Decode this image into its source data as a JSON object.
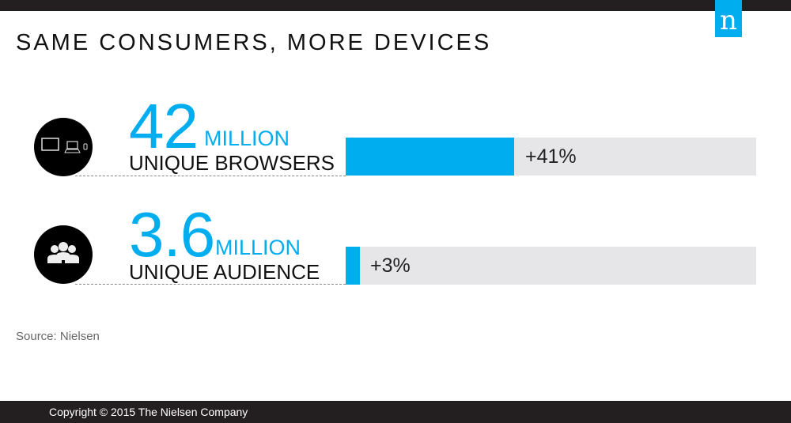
{
  "title": "SAME CONSUMERS, MORE DEVICES",
  "logo": "n",
  "chart_data": {
    "type": "bar",
    "title": "SAME CONSUMERS, MORE DEVICES",
    "categories": [
      "UNIQUE BROWSERS",
      "UNIQUE AUDIENCE"
    ],
    "values_millions": [
      42,
      3.6
    ],
    "big_numbers": [
      "42",
      "3.6"
    ],
    "unit": "MILLION",
    "growth_percent": [
      41,
      3
    ],
    "growth_labels": [
      "+41%",
      "+3%"
    ],
    "xlim": [
      0,
      100
    ]
  },
  "source": "Source: Nielsen",
  "copyright": "Copyright © 2015 The Nielsen Company",
  "colors": {
    "accent": "#00aeef",
    "dark": "#231f20",
    "track": "#e6e6e8"
  }
}
